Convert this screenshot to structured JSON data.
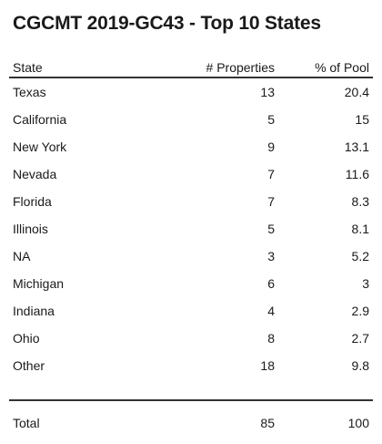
{
  "title": "CGCMT 2019-GC43 - Top 10 States",
  "chart_data": {
    "type": "table",
    "title": "CGCMT 2019-GC43 - Top 10 States",
    "columns": [
      "State",
      "# Properties",
      "% of Pool"
    ],
    "rows": [
      {
        "state": "Texas",
        "properties": "13",
        "pct": "20.4"
      },
      {
        "state": "California",
        "properties": "5",
        "pct": "15"
      },
      {
        "state": "New York",
        "properties": "9",
        "pct": "13.1"
      },
      {
        "state": "Nevada",
        "properties": "7",
        "pct": "11.6"
      },
      {
        "state": "Florida",
        "properties": "7",
        "pct": "8.3"
      },
      {
        "state": "Illinois",
        "properties": "5",
        "pct": "8.1"
      },
      {
        "state": "NA",
        "properties": "3",
        "pct": "5.2"
      },
      {
        "state": "Michigan",
        "properties": "6",
        "pct": "3"
      },
      {
        "state": "Indiana",
        "properties": "4",
        "pct": "2.9"
      },
      {
        "state": "Ohio",
        "properties": "8",
        "pct": "2.7"
      },
      {
        "state": "Other",
        "properties": "18",
        "pct": "9.8"
      }
    ],
    "total": {
      "state": "Total",
      "properties": "85",
      "pct": "100"
    }
  }
}
